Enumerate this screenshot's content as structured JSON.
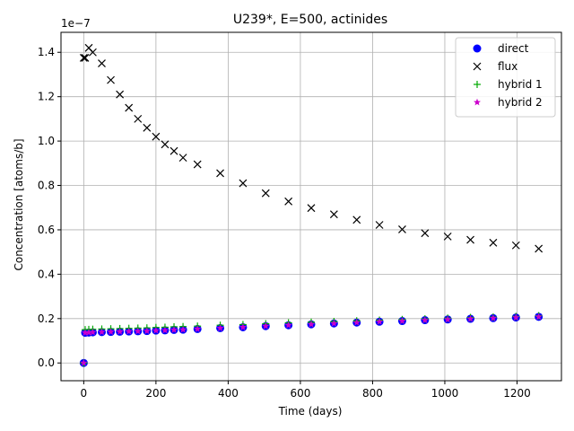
{
  "chart_data": {
    "type": "scatter",
    "title": "U239*, E=500, actinides",
    "xlabel": "Time (days)",
    "ylabel": "Concentration [atoms/b]",
    "y_multiplier_label": "1e−7",
    "xlim": [
      -63,
      1323
    ],
    "ylim": [
      -0.08,
      1.49
    ],
    "x_ticks": [
      0,
      200,
      400,
      600,
      800,
      1000,
      1200
    ],
    "y_ticks": [
      0.0,
      0.2,
      0.4,
      0.6,
      0.8,
      1.0,
      1.2,
      1.4
    ],
    "x_tick_labels": [
      "0",
      "200",
      "400",
      "600",
      "800",
      "1000",
      "1200"
    ],
    "y_tick_labels": [
      "0.0",
      "0.2",
      "0.4",
      "0.6",
      "0.8",
      "1.0",
      "1.2",
      "1.4"
    ],
    "grid": true,
    "legend_position": "top-right",
    "x": [
      0,
      4,
      14,
      25,
      50,
      75,
      100,
      125,
      150,
      175,
      200,
      225,
      250,
      275,
      315,
      378,
      441,
      504,
      567,
      630,
      693,
      756,
      819,
      882,
      945,
      1008,
      1071,
      1134,
      1197,
      1260
    ],
    "series": [
      {
        "name": "direct",
        "marker": "circle",
        "color": "#0000ff",
        "values": [
          0.0,
          0.136,
          0.137,
          0.138,
          0.139,
          0.14,
          0.141,
          0.142,
          0.143,
          0.144,
          0.146,
          0.147,
          0.149,
          0.15,
          0.153,
          0.157,
          0.161,
          0.166,
          0.17,
          0.174,
          0.178,
          0.182,
          0.186,
          0.189,
          0.193,
          0.196,
          0.199,
          0.202,
          0.205,
          0.208
        ]
      },
      {
        "name": "flux",
        "marker": "x",
        "color": "#000000",
        "values": [
          1.375,
          1.375,
          1.42,
          1.4,
          1.35,
          1.275,
          1.21,
          1.15,
          1.1,
          1.06,
          1.02,
          0.985,
          0.955,
          0.925,
          0.895,
          0.855,
          0.81,
          0.765,
          0.728,
          0.698,
          0.67,
          0.645,
          0.622,
          0.602,
          0.585,
          0.57,
          0.555,
          0.542,
          0.53,
          0.515
        ]
      },
      {
        "name": "hybrid 1",
        "marker": "plus",
        "color": "#00aa00",
        "values": [
          0.0,
          0.15,
          0.151,
          0.152,
          0.153,
          0.154,
          0.155,
          0.156,
          0.157,
          0.158,
          0.16,
          0.161,
          0.163,
          0.164,
          0.166,
          0.17,
          0.173,
          0.177,
          0.181,
          0.184,
          0.187,
          0.19,
          0.193,
          0.196,
          0.199,
          0.202,
          0.205,
          0.207,
          0.21,
          0.213
        ]
      },
      {
        "name": "hybrid 2",
        "marker": "star",
        "color": "#cc00cc",
        "values": [
          0.0,
          0.136,
          0.137,
          0.138,
          0.139,
          0.14,
          0.141,
          0.142,
          0.143,
          0.144,
          0.146,
          0.147,
          0.149,
          0.15,
          0.153,
          0.157,
          0.161,
          0.166,
          0.17,
          0.174,
          0.178,
          0.182,
          0.186,
          0.189,
          0.193,
          0.196,
          0.199,
          0.202,
          0.205,
          0.208
        ]
      }
    ]
  }
}
